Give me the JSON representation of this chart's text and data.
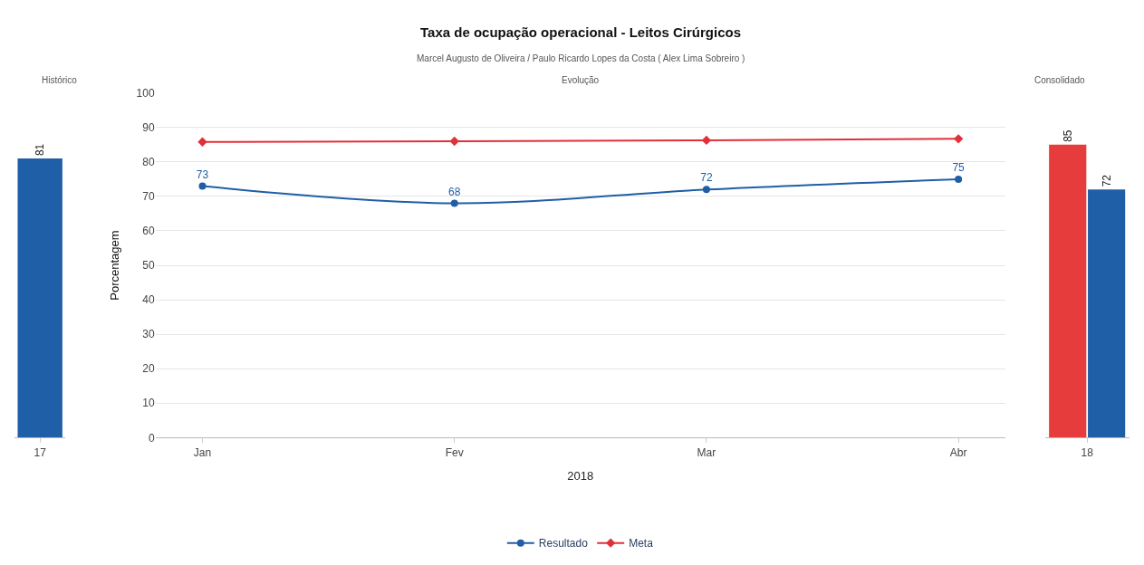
{
  "chart_data": [
    {
      "type": "bar",
      "title": "Histórico",
      "categories": [
        "17"
      ],
      "values": [
        81
      ],
      "colors": [
        "#1f5fa8"
      ],
      "data_labels": true,
      "ylim": [
        0,
        100
      ],
      "tick_labels": "x"
    },
    {
      "type": "line",
      "title": "Taxa de ocupação operacional - Leitos Cirúrgicos",
      "subtitle": "Marcel Augusto de Oliveira / Paulo Ricardo Lopes da Costa ( Alex Lima Sobreiro )",
      "annotations": [
        "Evolução"
      ],
      "xlabel": "2018",
      "ylabel": "Porcentagem",
      "categories": [
        "Jan",
        "Fev",
        "Mar",
        "Abr"
      ],
      "series": [
        {
          "name": "Resultado",
          "color": "#1f5fa8",
          "values": [
            73,
            68,
            72,
            75
          ],
          "marker": "circle",
          "data_labels": true
        },
        {
          "name": "Meta",
          "color": "#e0303a",
          "values": [
            85.8,
            86,
            86.3,
            86.7
          ],
          "marker": "diamond"
        }
      ],
      "ylim": [
        0,
        100
      ],
      "yticks": [
        0,
        10,
        20,
        30,
        40,
        50,
        60,
        70,
        80,
        90,
        100
      ],
      "grid": "y",
      "legend": "bottom"
    },
    {
      "type": "bar",
      "title": "Consolidado",
      "categories": [
        "18"
      ],
      "series": [
        {
          "color": "#e63c3c",
          "values": [
            85
          ]
        },
        {
          "color": "#1f5fa8",
          "values": [
            72
          ]
        }
      ],
      "data_labels": true,
      "ylim": [
        0,
        100
      ],
      "tick_labels": "x"
    }
  ]
}
